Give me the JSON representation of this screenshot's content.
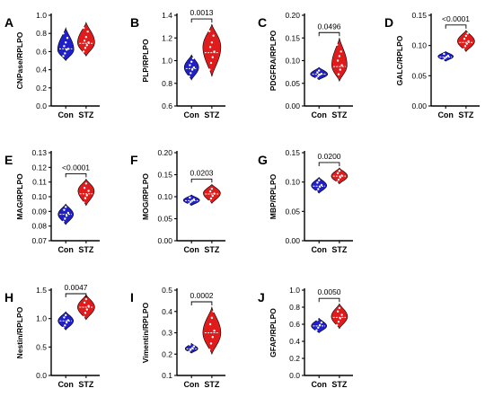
{
  "colors": {
    "control": "#2020c8",
    "stz": "#e01b1b",
    "point": "#ffffff",
    "median": "#ffffff"
  },
  "categories": [
    "Con",
    "STZ"
  ],
  "chart_data": [
    {
      "type": "violin",
      "panel": "A",
      "ylabel": "CNPase/RPLPO",
      "ylim": [
        0,
        1.0
      ],
      "yticks": [
        "0.0",
        "0.2",
        "0.4",
        "0.6",
        "0.8",
        "1.0"
      ],
      "ytickvals": [
        0,
        0.2,
        0.4,
        0.6,
        0.8,
        1.0
      ],
      "categories": [
        "Con",
        "STZ"
      ],
      "pvalue": "",
      "series": [
        {
          "name": "Con",
          "min": 0.5,
          "max": 0.86,
          "median": 0.63,
          "peak": 0.62,
          "width": 0.9,
          "values": [
            0.55,
            0.58,
            0.62,
            0.63,
            0.66,
            0.7,
            0.75,
            0.8
          ]
        },
        {
          "name": "STZ",
          "min": 0.55,
          "max": 0.92,
          "median": 0.69,
          "peak": 0.7,
          "width": 0.95,
          "values": [
            0.6,
            0.64,
            0.67,
            0.7,
            0.72,
            0.76,
            0.82,
            0.86
          ]
        }
      ]
    },
    {
      "type": "violin",
      "panel": "B",
      "ylabel": "PLP/RPLPO",
      "ylim": [
        0.6,
        1.4
      ],
      "yticks": [
        "0.6",
        "0.8",
        "1.0",
        "1.2",
        "1.4"
      ],
      "ytickvals": [
        0.6,
        0.8,
        1.0,
        1.2,
        1.4
      ],
      "categories": [
        "Con",
        "STZ"
      ],
      "pvalue": "0.0013",
      "series": [
        {
          "name": "Con",
          "min": 0.83,
          "max": 1.05,
          "median": 0.93,
          "peak": 0.94,
          "width": 0.8,
          "values": [
            0.86,
            0.89,
            0.92,
            0.94,
            0.96,
            0.99,
            1.02
          ]
        },
        {
          "name": "STZ",
          "min": 0.86,
          "max": 1.32,
          "median": 1.07,
          "peak": 1.12,
          "width": 1.0,
          "values": [
            0.92,
            0.98,
            1.03,
            1.08,
            1.12,
            1.16,
            1.22,
            1.26
          ]
        }
      ]
    },
    {
      "type": "violin",
      "panel": "C",
      "ylabel": "PDGFRA/RPLPO",
      "ylim": [
        0,
        0.2
      ],
      "yticks": [
        "0.00",
        "0.05",
        "0.10",
        "0.15",
        "0.20"
      ],
      "ytickvals": [
        0,
        0.05,
        0.1,
        0.15,
        0.2
      ],
      "categories": [
        "Con",
        "STZ"
      ],
      "pvalue": "0.0496",
      "series": [
        {
          "name": "Con",
          "min": 0.058,
          "max": 0.085,
          "median": 0.07,
          "peak": 0.07,
          "width": 0.95,
          "values": [
            0.062,
            0.066,
            0.069,
            0.071,
            0.074,
            0.078
          ]
        },
        {
          "name": "STZ",
          "min": 0.055,
          "max": 0.15,
          "median": 0.087,
          "peak": 0.09,
          "width": 0.85,
          "values": [
            0.06,
            0.07,
            0.08,
            0.09,
            0.1,
            0.11,
            0.12,
            0.135
          ]
        }
      ]
    },
    {
      "type": "violin",
      "panel": "D",
      "ylabel": "GALC/RPLPO",
      "ylim": [
        0,
        0.15
      ],
      "yticks": [
        "0.00",
        "0.05",
        "0.10",
        "0.15"
      ],
      "ytickvals": [
        0,
        0.05,
        0.1,
        0.15
      ],
      "categories": [
        "Con",
        "STZ"
      ],
      "pvalue": "<0.0001",
      "series": [
        {
          "name": "Con",
          "min": 0.074,
          "max": 0.09,
          "median": 0.081,
          "peak": 0.082,
          "width": 0.85,
          "values": [
            0.076,
            0.079,
            0.081,
            0.083,
            0.086
          ]
        },
        {
          "name": "STZ",
          "min": 0.09,
          "max": 0.125,
          "median": 0.105,
          "peak": 0.107,
          "width": 0.95,
          "values": [
            0.094,
            0.099,
            0.103,
            0.107,
            0.111,
            0.116,
            0.12
          ]
        }
      ]
    },
    {
      "type": "violin",
      "panel": "E",
      "ylabel": "MAG/RPLPO",
      "ylim": [
        0.07,
        0.13
      ],
      "yticks": [
        "0.07",
        "0.08",
        "0.09",
        "0.10",
        "0.11",
        "0.12",
        "0.13"
      ],
      "ytickvals": [
        0.07,
        0.08,
        0.09,
        0.1,
        0.11,
        0.12,
        0.13
      ],
      "categories": [
        "Con",
        "STZ"
      ],
      "pvalue": "<0.0001",
      "series": [
        {
          "name": "Con",
          "min": 0.081,
          "max": 0.095,
          "median": 0.088,
          "peak": 0.088,
          "width": 0.85,
          "values": [
            0.083,
            0.085,
            0.087,
            0.089,
            0.091,
            0.093
          ]
        },
        {
          "name": "STZ",
          "min": 0.094,
          "max": 0.112,
          "median": 0.102,
          "peak": 0.104,
          "width": 0.9,
          "values": [
            0.096,
            0.099,
            0.101,
            0.104,
            0.106,
            0.109
          ]
        }
      ]
    },
    {
      "type": "violin",
      "panel": "F",
      "ylabel": "MOG/RPLPO",
      "ylim": [
        0,
        0.2
      ],
      "yticks": [
        "0.00",
        "0.05",
        "0.10",
        "0.15",
        "0.20"
      ],
      "ytickvals": [
        0,
        0.05,
        0.1,
        0.15,
        0.2
      ],
      "categories": [
        "Con",
        "STZ"
      ],
      "pvalue": "0.0203",
      "series": [
        {
          "name": "Con",
          "min": 0.08,
          "max": 0.104,
          "median": 0.091,
          "peak": 0.092,
          "width": 0.9,
          "values": [
            0.084,
            0.088,
            0.091,
            0.094,
            0.098
          ]
        },
        {
          "name": "STZ",
          "min": 0.085,
          "max": 0.128,
          "median": 0.106,
          "peak": 0.108,
          "width": 0.95,
          "values": [
            0.09,
            0.096,
            0.102,
            0.107,
            0.112,
            0.118
          ]
        }
      ]
    },
    {
      "type": "violin",
      "panel": "G",
      "ylabel": "MBP/RPLPO",
      "ylim": [
        0,
        0.15
      ],
      "yticks": [
        "0.00",
        "0.05",
        "0.10",
        "0.15"
      ],
      "ytickvals": [
        0,
        0.05,
        0.1,
        0.15
      ],
      "categories": [
        "Con",
        "STZ"
      ],
      "pvalue": "0.0200",
      "series": [
        {
          "name": "Con",
          "min": 0.081,
          "max": 0.108,
          "median": 0.093,
          "peak": 0.094,
          "width": 0.85,
          "values": [
            0.084,
            0.088,
            0.092,
            0.095,
            0.099,
            0.103
          ]
        },
        {
          "name": "STZ",
          "min": 0.097,
          "max": 0.124,
          "median": 0.11,
          "peak": 0.11,
          "width": 0.9,
          "values": [
            0.1,
            0.104,
            0.108,
            0.111,
            0.115,
            0.119
          ]
        }
      ]
    },
    {
      "type": "violin",
      "panel": "H",
      "ylabel": "Nestin/RPLPO",
      "ylim": [
        0,
        1.5
      ],
      "yticks": [
        "0.0",
        "0.5",
        "1.0",
        "1.5"
      ],
      "ytickvals": [
        0,
        0.5,
        1.0,
        1.5
      ],
      "categories": [
        "Con",
        "STZ"
      ],
      "pvalue": "0.0047",
      "series": [
        {
          "name": "Con",
          "min": 0.8,
          "max": 1.12,
          "median": 0.96,
          "peak": 0.96,
          "width": 0.85,
          "values": [
            0.84,
            0.88,
            0.93,
            0.97,
            1.02,
            1.06
          ]
        },
        {
          "name": "STZ",
          "min": 0.98,
          "max": 1.42,
          "median": 1.2,
          "peak": 1.2,
          "width": 0.95,
          "values": [
            1.03,
            1.1,
            1.16,
            1.22,
            1.28,
            1.34
          ]
        }
      ]
    },
    {
      "type": "violin",
      "panel": "I",
      "ylabel": "Vimentin/RPLPO",
      "ylim": [
        0.1,
        0.5
      ],
      "yticks": [
        "0.1",
        "0.2",
        "0.3",
        "0.4",
        "0.5"
      ],
      "ytickvals": [
        0.1,
        0.2,
        0.3,
        0.4,
        0.5
      ],
      "categories": [
        "Con",
        "STZ"
      ],
      "pvalue": "0.0002",
      "series": [
        {
          "name": "Con",
          "min": 0.205,
          "max": 0.25,
          "median": 0.225,
          "peak": 0.225,
          "width": 0.7,
          "values": [
            0.212,
            0.22,
            0.228,
            0.236,
            0.244
          ]
        },
        {
          "name": "STZ",
          "min": 0.2,
          "max": 0.42,
          "median": 0.3,
          "peak": 0.3,
          "width": 1.0,
          "values": [
            0.22,
            0.25,
            0.28,
            0.31,
            0.34,
            0.37,
            0.4
          ]
        }
      ]
    },
    {
      "type": "violin",
      "panel": "J",
      "ylabel": "GFAP/RPLPO",
      "ylim": [
        0,
        1.0
      ],
      "yticks": [
        "0.0",
        "0.2",
        "0.4",
        "0.6",
        "0.8",
        "1.0"
      ],
      "ytickvals": [
        0,
        0.2,
        0.4,
        0.6,
        0.8,
        1.0
      ],
      "categories": [
        "Con",
        "STZ"
      ],
      "pvalue": "0.0050",
      "series": [
        {
          "name": "Con",
          "min": 0.5,
          "max": 0.67,
          "median": 0.58,
          "peak": 0.58,
          "width": 0.85,
          "values": [
            0.53,
            0.56,
            0.59,
            0.62,
            0.65
          ]
        },
        {
          "name": "STZ",
          "min": 0.55,
          "max": 0.84,
          "median": 0.68,
          "peak": 0.69,
          "width": 0.9,
          "values": [
            0.59,
            0.63,
            0.67,
            0.71,
            0.75,
            0.79
          ]
        }
      ]
    }
  ]
}
